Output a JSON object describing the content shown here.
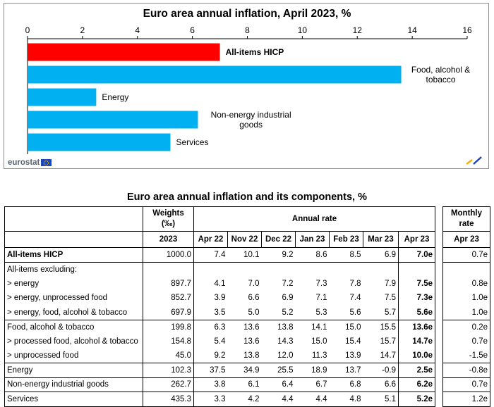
{
  "chart_data": {
    "type": "bar",
    "orientation": "horizontal",
    "title": "Euro area annual inflation, April 2023, %",
    "categories": [
      "All-items HICP",
      "Food, alcohol & tobacco",
      "Energy",
      "Non-energy industrial goods",
      "Services"
    ],
    "category_lines": [
      [
        "All-items HICP"
      ],
      [
        "Food, alcohol &",
        "tobacco"
      ],
      [
        "Energy"
      ],
      [
        "Non-energy industrial",
        "goods"
      ],
      [
        "Services"
      ]
    ],
    "values": [
      7.0,
      13.6,
      2.5,
      6.2,
      5.2
    ],
    "colors": [
      "#ff0000",
      "#00b0f0",
      "#00b0f0",
      "#00b0f0",
      "#00b0f0"
    ],
    "highlight_bold": [
      true,
      false,
      false,
      false,
      false
    ],
    "xlim": [
      0,
      16
    ],
    "xticks": [
      "0",
      "2",
      "4",
      "6",
      "8",
      "10",
      "12",
      "14",
      "16"
    ],
    "axis_position": "top",
    "grid": false,
    "logo": "eurostat"
  },
  "table": {
    "title": "Euro area annual inflation and its components, %",
    "header": {
      "weights": "Weights",
      "weights_unit": "(‰)",
      "annual_rate": "Annual rate",
      "weights_year": "2023",
      "months": [
        "Apr 22",
        "Nov 22",
        "Dec 22",
        "Jan 23",
        "Feb 23",
        "Mar 23",
        "Apr 23"
      ],
      "monthly": "Monthly",
      "monthly_rate": "rate",
      "monthly_month": "Apr 23"
    },
    "rows": [
      {
        "label": "All-items HICP",
        "weight": "1000.0",
        "rates": [
          "7.4",
          "10.1",
          "9.2",
          "8.6",
          "8.5",
          "6.9",
          "7.0e"
        ],
        "monthly": "0.7e",
        "bold_label": true
      },
      {
        "label": "All-items excluding:",
        "weight": "",
        "rates": [
          "",
          "",
          "",
          "",
          "",
          "",
          ""
        ],
        "monthly": "",
        "bold_label": false
      },
      {
        "label": "> energy",
        "weight": "897.7",
        "rates": [
          "4.1",
          "7.0",
          "7.2",
          "7.3",
          "7.8",
          "7.9",
          "7.5e"
        ],
        "monthly": "0.8e",
        "bold_label": false
      },
      {
        "label": "> energy, unprocessed food",
        "weight": "852.7",
        "rates": [
          "3.9",
          "6.6",
          "6.9",
          "7.1",
          "7.4",
          "7.5",
          "7.3e"
        ],
        "monthly": "1.0e",
        "bold_label": false
      },
      {
        "label": "> energy, food, alcohol & tobacco",
        "weight": "697.9",
        "rates": [
          "3.5",
          "5.0",
          "5.2",
          "5.3",
          "5.6",
          "5.7",
          "5.6e"
        ],
        "monthly": "1.0e",
        "bold_label": false
      },
      {
        "label": "Food, alcohol & tobacco",
        "weight": "199.8",
        "rates": [
          "6.3",
          "13.6",
          "13.8",
          "14.1",
          "15.0",
          "15.5",
          "13.6e"
        ],
        "monthly": "0.2e",
        "bold_label": false
      },
      {
        "label": "> processed food, alcohol & tobacco",
        "weight": "154.8",
        "rates": [
          "5.4",
          "13.6",
          "14.3",
          "15.0",
          "15.4",
          "15.7",
          "14.7e"
        ],
        "monthly": "0.7e",
        "bold_label": false
      },
      {
        "label": "> unprocessed food",
        "weight": "45.0",
        "rates": [
          "9.2",
          "13.8",
          "12.0",
          "11.3",
          "13.9",
          "14.7",
          "10.0e"
        ],
        "monthly": "-1.5e",
        "bold_label": false
      },
      {
        "label": "Energy",
        "weight": "102.3",
        "rates": [
          "37.5",
          "34.9",
          "25.5",
          "18.9",
          "13.7",
          "-0.9",
          "2.5e"
        ],
        "monthly": "-0.8e",
        "bold_label": false
      },
      {
        "label": "Non-energy industrial goods",
        "weight": "262.7",
        "rates": [
          "3.8",
          "6.1",
          "6.4",
          "6.7",
          "6.8",
          "6.6",
          "6.2e"
        ],
        "monthly": "0.7e",
        "bold_label": false
      },
      {
        "label": "Services",
        "weight": "435.3",
        "rates": [
          "3.3",
          "4.2",
          "4.4",
          "4.4",
          "4.8",
          "5.1",
          "5.2e"
        ],
        "monthly": "1.2e",
        "bold_label": false
      }
    ]
  }
}
